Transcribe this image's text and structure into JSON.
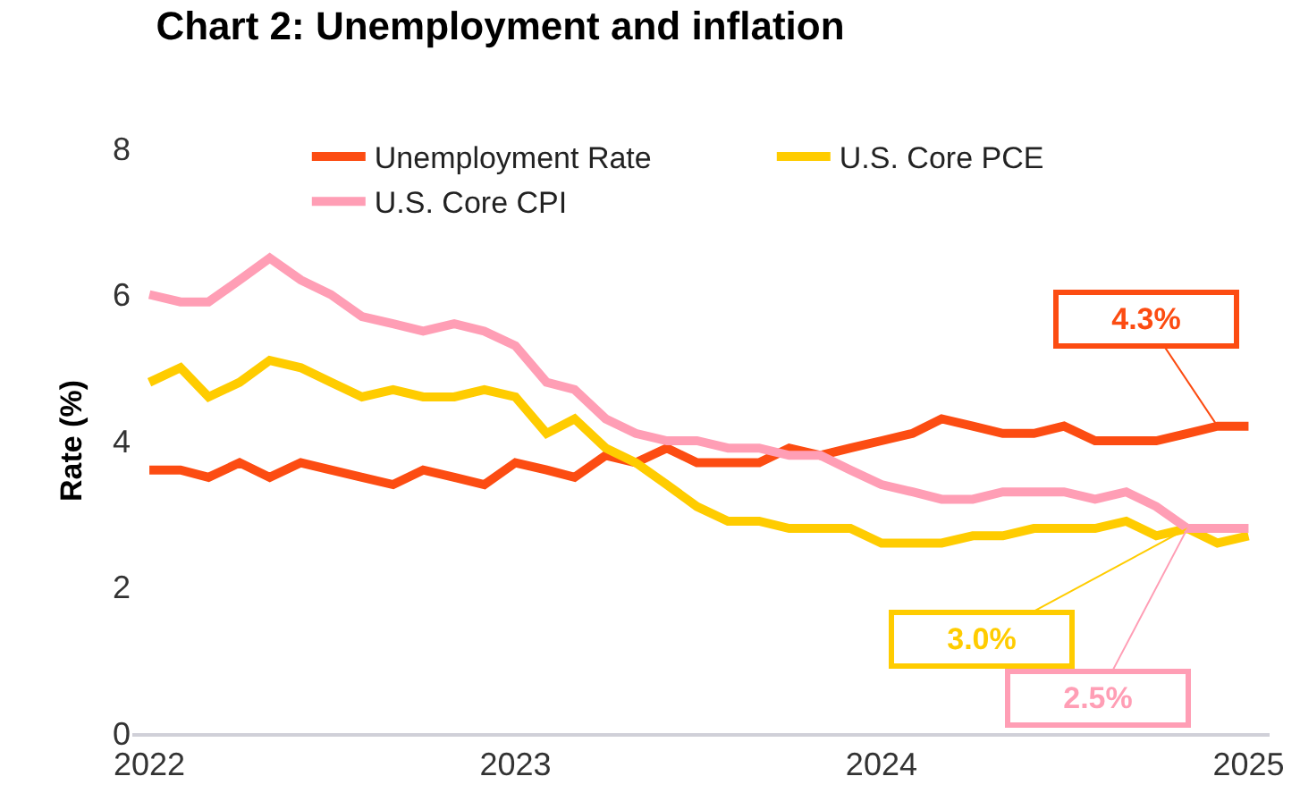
{
  "chart_data": {
    "type": "line",
    "title": "Chart 2: Unemployment and inflation",
    "ylabel": "Rate (%)",
    "x": [
      "2022-01",
      "2022-02",
      "2022-03",
      "2022-04",
      "2022-05",
      "2022-06",
      "2022-07",
      "2022-08",
      "2022-09",
      "2022-10",
      "2022-11",
      "2022-12",
      "2023-01",
      "2023-02",
      "2023-03",
      "2023-04",
      "2023-05",
      "2023-06",
      "2023-07",
      "2023-08",
      "2023-09",
      "2023-10",
      "2023-11",
      "2023-12",
      "2024-01",
      "2024-02",
      "2024-03",
      "2024-04",
      "2024-05",
      "2024-06",
      "2024-07",
      "2024-08",
      "2024-09",
      "2024-10",
      "2024-11",
      "2024-12",
      "2025-01"
    ],
    "series": [
      {
        "name": "Unemployment Rate",
        "color": "#fc4c12",
        "values": [
          3.6,
          3.6,
          3.5,
          3.7,
          3.5,
          3.7,
          3.6,
          3.5,
          3.4,
          3.6,
          3.5,
          3.4,
          3.7,
          3.6,
          3.5,
          3.8,
          3.7,
          3.9,
          3.7,
          3.7,
          3.7,
          3.9,
          3.8,
          3.9,
          4.0,
          4.1,
          4.3,
          4.2,
          4.1,
          4.1,
          4.2,
          4.0,
          4.0,
          4.0,
          4.1,
          4.2,
          4.2
        ]
      },
      {
        "name": "U.S. Core PCE",
        "color": "#ffcc00",
        "values": [
          4.8,
          5.0,
          4.6,
          4.8,
          5.1,
          5.0,
          4.8,
          4.6,
          4.7,
          4.6,
          4.6,
          4.7,
          4.6,
          4.1,
          4.3,
          3.9,
          3.7,
          3.4,
          3.1,
          2.9,
          2.9,
          2.8,
          2.8,
          2.8,
          2.6,
          2.6,
          2.6,
          2.7,
          2.7,
          2.8,
          2.8,
          2.8,
          2.9,
          2.7,
          2.8,
          2.6,
          2.7
        ]
      },
      {
        "name": "U.S. Core CPI",
        "color": "#ff9eb5",
        "values": [
          6.0,
          5.9,
          5.9,
          6.2,
          6.5,
          6.2,
          6.0,
          5.7,
          5.6,
          5.5,
          5.6,
          5.5,
          5.3,
          4.8,
          4.7,
          4.3,
          4.1,
          4.0,
          4.0,
          3.9,
          3.9,
          3.8,
          3.8,
          3.6,
          3.4,
          3.3,
          3.2,
          3.2,
          3.3,
          3.3,
          3.3,
          3.2,
          3.3,
          3.1,
          2.8,
          2.8,
          2.8
        ]
      }
    ],
    "annotations": [
      {
        "text": "4.3%",
        "x": "2024-12",
        "y": 4.2
      },
      {
        "text": "3.0%",
        "x": "2024-11",
        "y": 2.8
      },
      {
        "text": "2.5%",
        "x": "2024-11",
        "y": 2.8
      }
    ],
    "xlim": [
      "2021-12-15",
      "2025-01-22"
    ],
    "xticks": [
      "2022",
      "2023",
      "2024",
      "2025"
    ],
    "ylim": [
      0,
      8
    ],
    "yticks": [
      0,
      2,
      4,
      6,
      8
    ],
    "grid": false,
    "legend": "top",
    "marker": "none",
    "line_style": "solid"
  }
}
